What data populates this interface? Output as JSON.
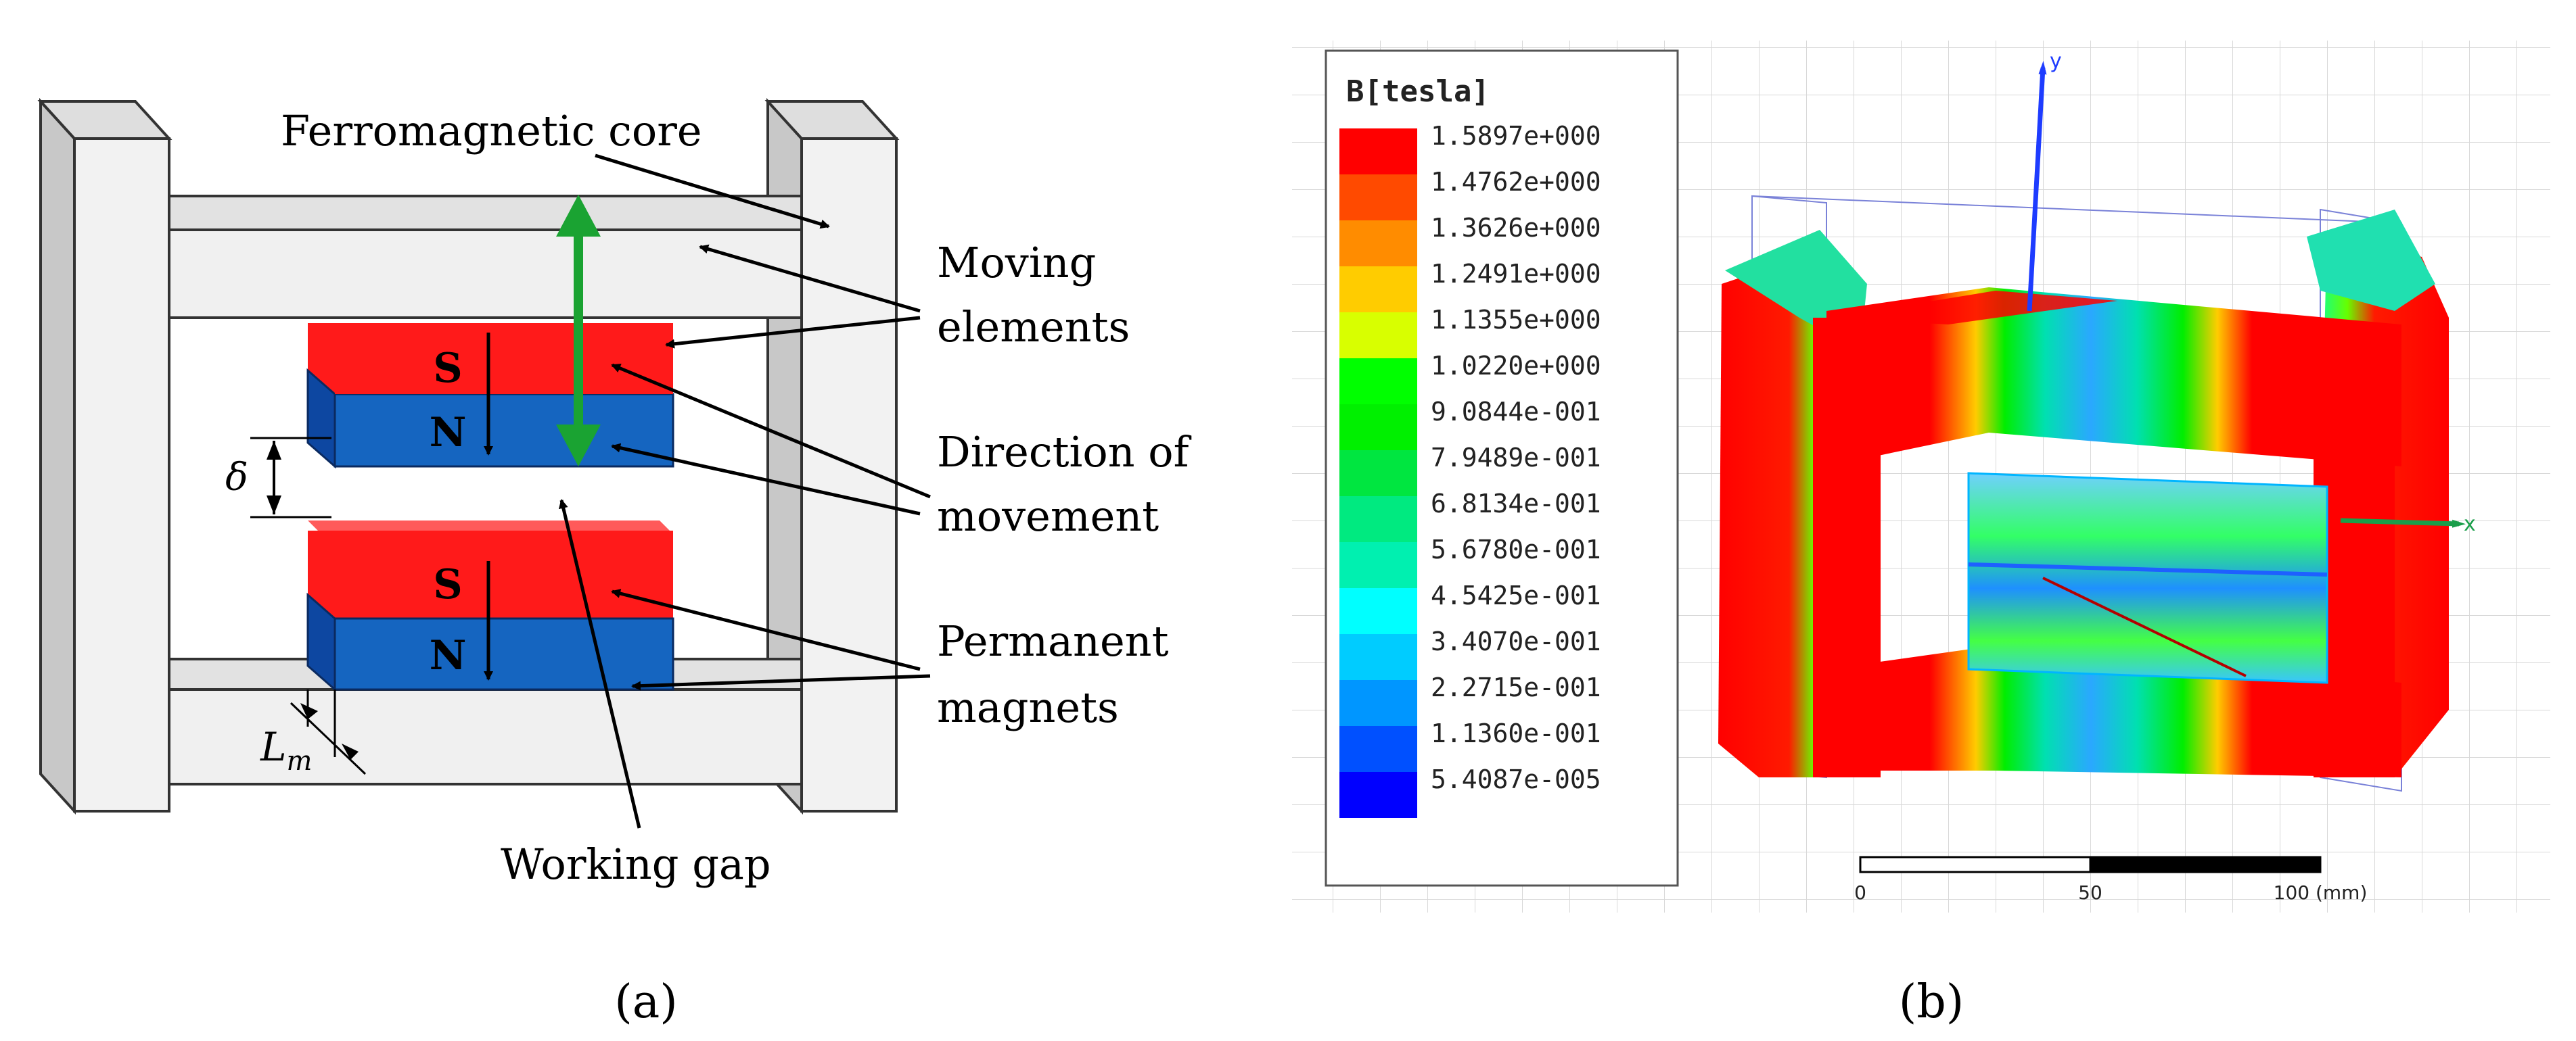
{
  "panel_a": {
    "caption": "(a)",
    "labels": {
      "ferromagnetic_core": "Ferromagnetic core",
      "moving_elements_1": "Moving",
      "moving_elements_2": "elements",
      "direction_1": "Direction of",
      "direction_2": "movement",
      "permanent_1": "Permanent",
      "permanent_2": "magnets",
      "working_gap": "Working gap",
      "delta": "δ",
      "lm_main": "L",
      "lm_sub": "m"
    },
    "magnet_top": {
      "s": "S",
      "n": "N"
    },
    "magnet_bottom": {
      "s": "S",
      "n": "N"
    },
    "colors": {
      "north": "#1565c0",
      "south": "#ff1a1a",
      "core": "#efefef",
      "arrow_green": "#1aa332"
    }
  },
  "panel_b": {
    "caption": "(b)",
    "legend_title": "B[tesla]",
    "legend_entries": [
      {
        "label": "1.5897e+000",
        "color": "#ff0000"
      },
      {
        "label": "1.4762e+000",
        "color": "#ff4a00"
      },
      {
        "label": "1.3626e+000",
        "color": "#ff8c00"
      },
      {
        "label": "1.2491e+000",
        "color": "#ffcc00"
      },
      {
        "label": "1.1355e+000",
        "color": "#d8ff00"
      },
      {
        "label": "1.0220e+000",
        "color": "#00ff00"
      },
      {
        "label": "9.0844e-001",
        "color": "#00f000"
      },
      {
        "label": "7.9489e-001",
        "color": "#00e640"
      },
      {
        "label": "6.8134e-001",
        "color": "#00ea80"
      },
      {
        "label": "5.6780e-001",
        "color": "#00f0b0"
      },
      {
        "label": "4.5425e-001",
        "color": "#00ffff"
      },
      {
        "label": "3.4070e-001",
        "color": "#00ccff"
      },
      {
        "label": "2.2715e-001",
        "color": "#0096ff"
      },
      {
        "label": "1.1360e-001",
        "color": "#0050ff"
      },
      {
        "label": "5.4087e-005",
        "color": "#0000ff"
      }
    ],
    "axis_y": "y",
    "axis_x": "x",
    "scale": {
      "t0": "0",
      "t1": "50",
      "t2": "100 (mm)"
    }
  }
}
